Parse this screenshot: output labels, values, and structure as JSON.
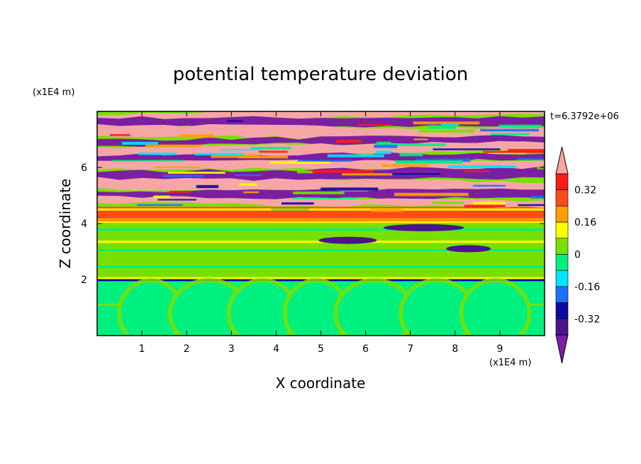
{
  "chart_data": {
    "type": "heatmap",
    "title": "potential temperature deviation",
    "xlabel": "X coordinate",
    "ylabel": "Z coordinate",
    "x_unit": "(x1E4 m)",
    "y_unit": "(x1E4 m)",
    "time_label": "t=6.3792e+06",
    "xlim": [
      0,
      10
    ],
    "ylim": [
      0,
      8
    ],
    "x_ticks": [
      "1",
      "2",
      "3",
      "4",
      "5",
      "6",
      "7",
      "8",
      "9"
    ],
    "y_ticks": [
      "2",
      "4",
      "6"
    ],
    "grid": false,
    "colorbar": {
      "placement": "right",
      "levels": [
        -0.4,
        -0.32,
        -0.24,
        -0.16,
        -0.08,
        0,
        0.08,
        0.16,
        0.24,
        0.32,
        0.4
      ],
      "labels": [
        "0.32",
        "0.16",
        "0",
        "-0.16",
        "-0.32"
      ],
      "extend": "both",
      "colors": [
        "#7b1fa2",
        "#4a148c",
        "#0a0aa0",
        "#1e6fff",
        "#00e5ff",
        "#00f080",
        "#78e000",
        "#ffff00",
        "#ff9f00",
        "#ff4a1a",
        "#ff1a1a",
        "#f7a6a6"
      ]
    },
    "bands": [
      {
        "z0": 0.0,
        "z1": 2.0,
        "value": -0.05,
        "pattern": "uniform with convective plumes"
      },
      {
        "z0": 2.0,
        "z1": 3.3,
        "value": 0.02,
        "pattern": "layered"
      },
      {
        "z0": 3.3,
        "z1": 4.0,
        "value": 0.05,
        "pattern": "layered"
      },
      {
        "z0": 4.0,
        "z1": 4.6,
        "value": 0.25,
        "pattern": "warm layer"
      },
      {
        "z0": 4.6,
        "z1": 8.0,
        "value": 0.0,
        "pattern": "alternating strong anomalies"
      }
    ]
  }
}
